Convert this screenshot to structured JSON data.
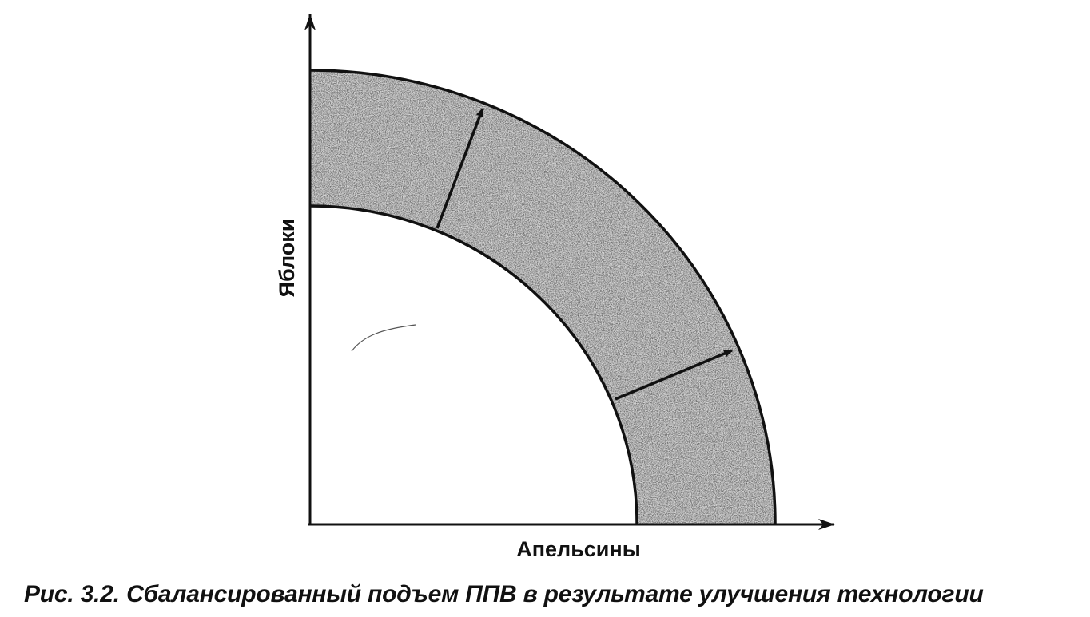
{
  "figure": {
    "caption": "Рис. 3.2. Сбалансированный подъем ППВ в результате улучшения технологии",
    "x_axis_label": "Апельсины",
    "y_axis_label": "Яблоки"
  },
  "colors": {
    "ink": "#111111",
    "shaded_band": "#c9c9c9",
    "background": "#ffffff"
  }
}
